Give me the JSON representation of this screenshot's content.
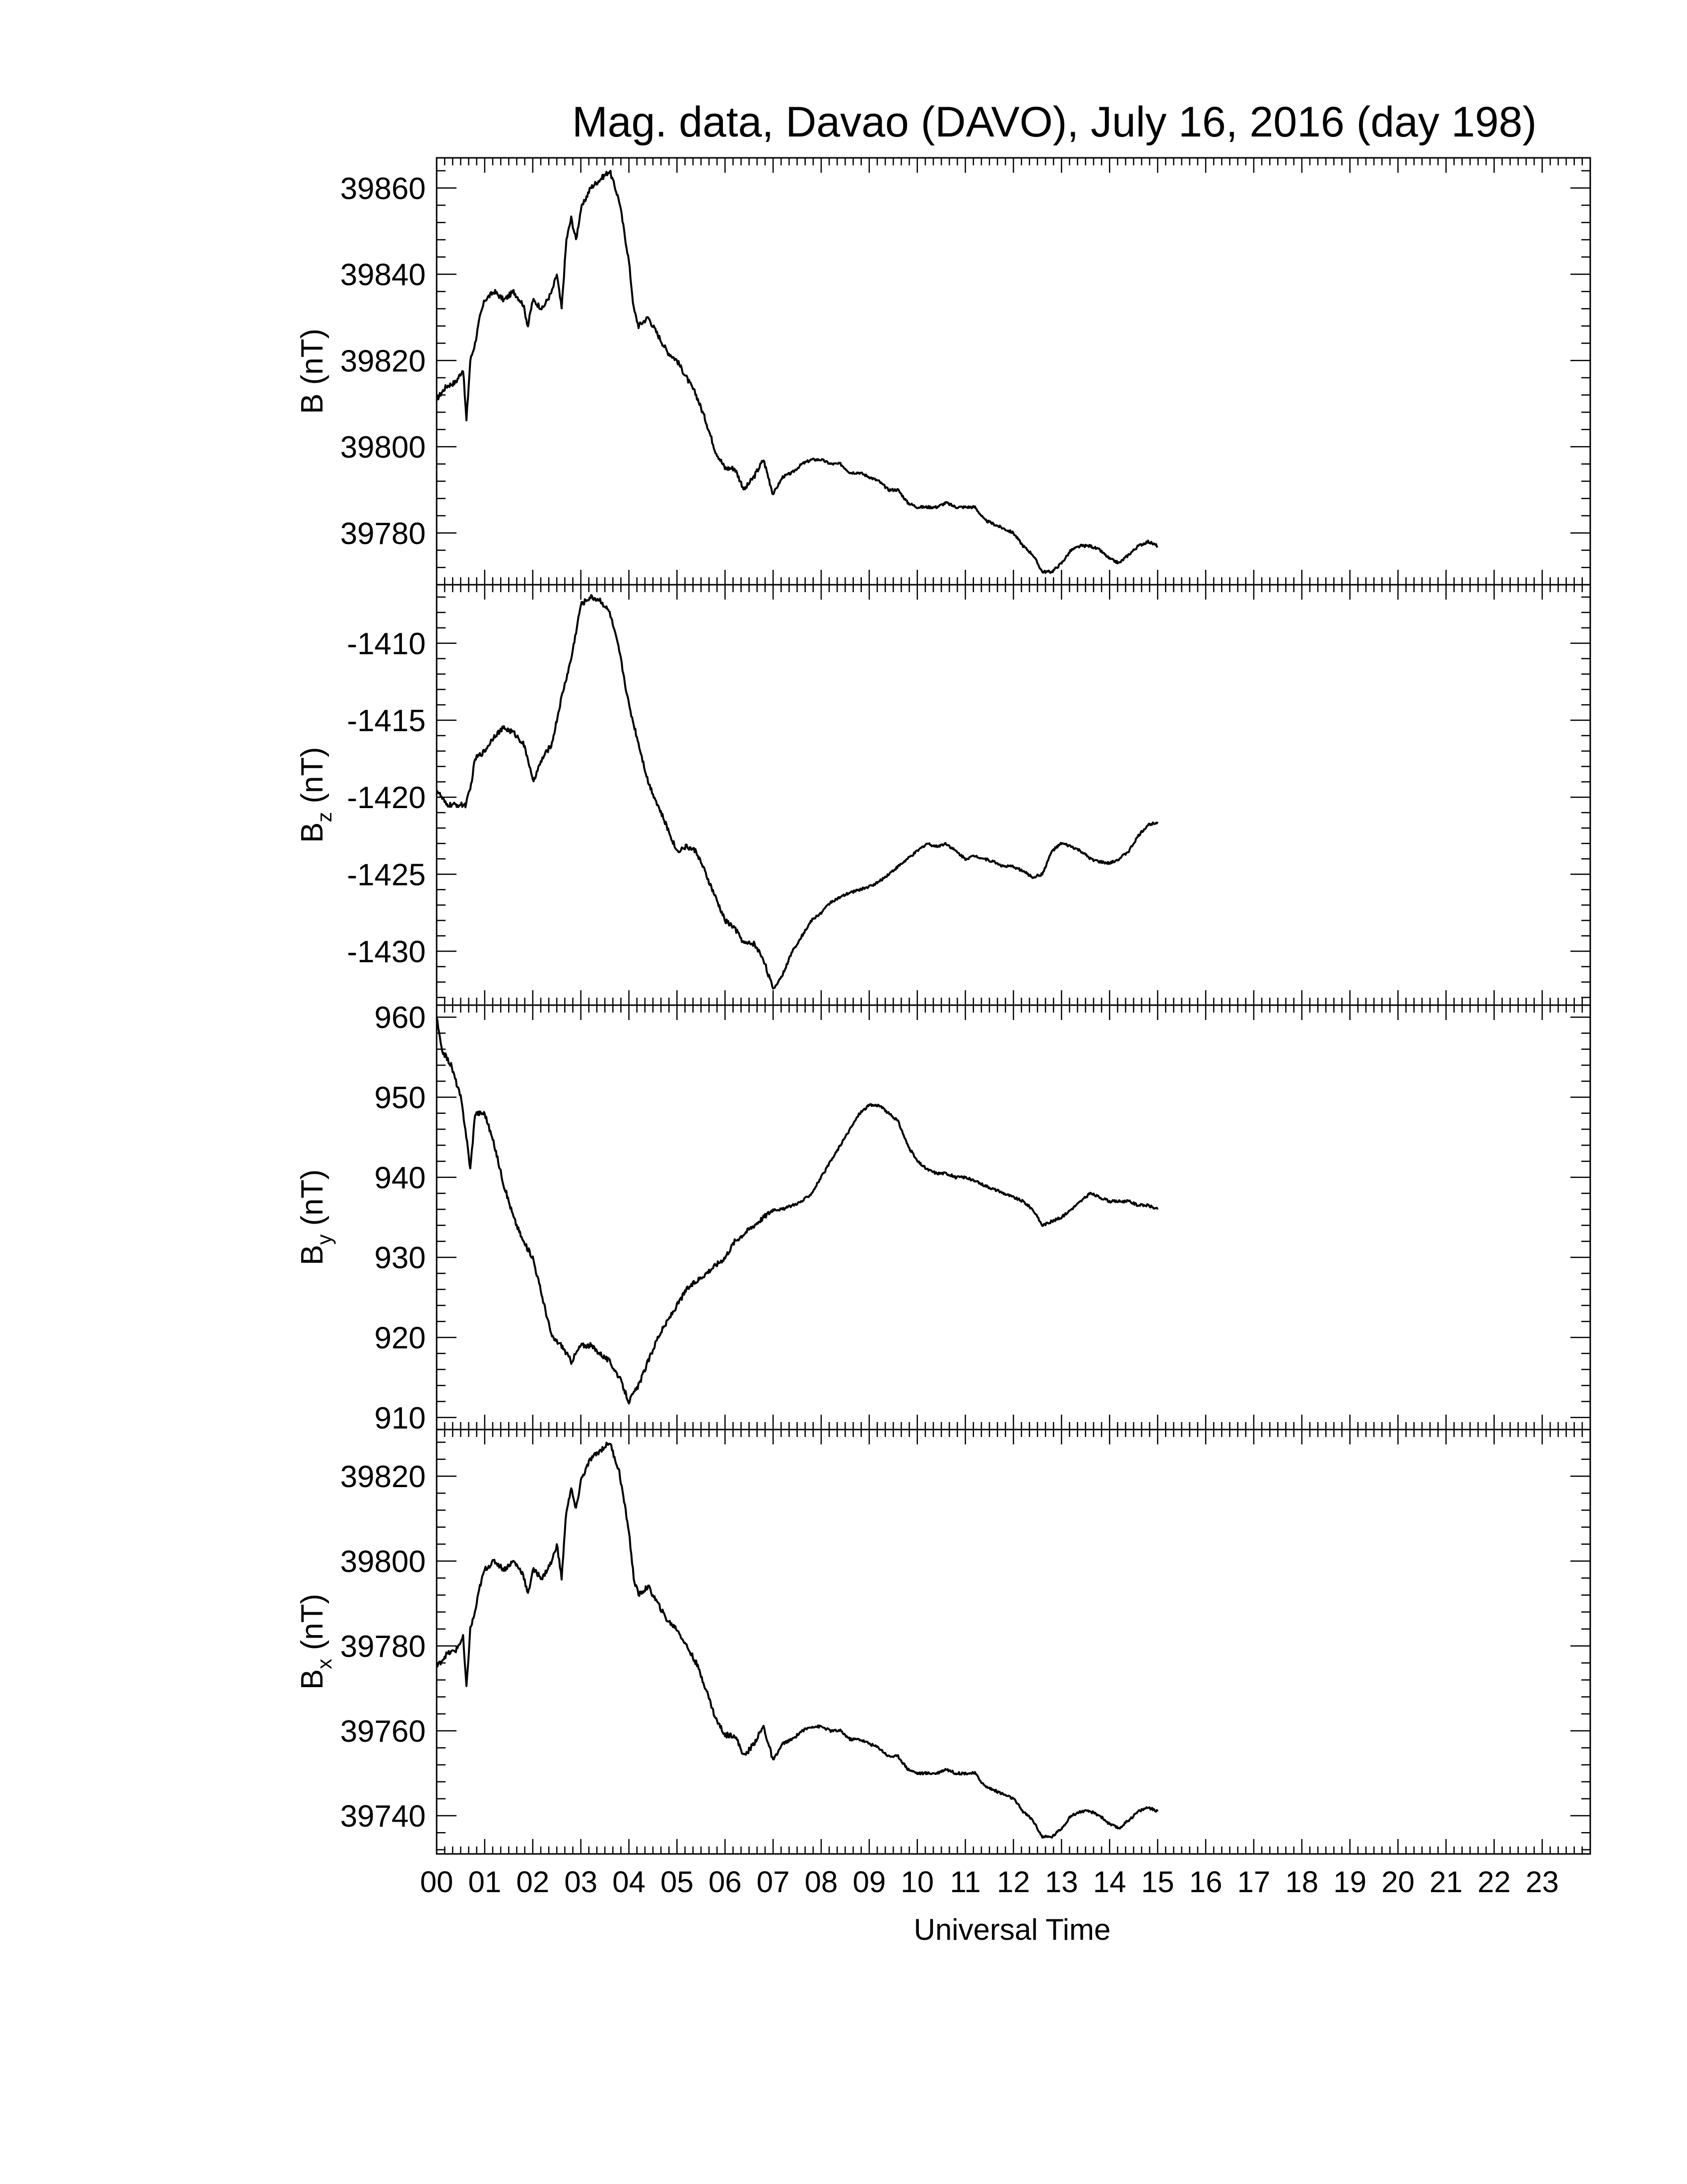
{
  "title": "Mag. data, Davao (DAVO), July 16, 2016 (day 198)",
  "xlabel": "Universal Time",
  "x_tick_labels": [
    "00",
    "01",
    "02",
    "03",
    "04",
    "05",
    "06",
    "07",
    "08",
    "09",
    "10",
    "11",
    "12",
    "13",
    "14",
    "15",
    "16",
    "17",
    "18",
    "19",
    "20",
    "21",
    "22",
    "23"
  ],
  "chart_data": [
    {
      "type": "line",
      "ylabel": {
        "main": "B",
        "sub": "",
        "unit": "(nT)"
      },
      "xlim": [
        0,
        24
      ],
      "ylim": [
        39768,
        39867
      ],
      "yticks": [
        39780,
        39800,
        39820,
        39840,
        39860
      ],
      "series": [
        {
          "x": [
            0,
            0.2,
            0.4,
            0.55,
            0.62,
            0.7,
            0.8,
            0.9,
            1.0,
            1.2,
            1.4,
            1.6,
            1.8,
            1.9,
            2.0,
            2.2,
            2.4,
            2.5,
            2.6,
            2.7,
            2.8,
            2.9,
            3.0,
            3.2,
            3.4,
            3.6,
            3.8,
            4.0,
            4.1,
            4.2,
            4.4,
            4.6,
            4.8,
            5.0,
            5.2,
            5.4,
            5.6,
            5.8,
            6.0,
            6.2,
            6.4,
            6.6,
            6.8,
            7.0,
            7.2,
            7.4,
            7.6,
            7.8,
            8.0,
            8.2,
            8.4,
            8.6,
            8.8,
            9.0,
            9.2,
            9.4,
            9.6,
            9.8,
            10.0,
            10.2,
            10.4,
            10.6,
            10.8,
            11.0,
            11.2,
            11.4,
            11.6,
            11.8,
            12.0,
            12.2,
            12.4,
            12.6,
            12.8,
            13.0,
            13.2,
            13.4,
            13.6,
            13.8,
            14.0,
            14.2,
            14.4,
            14.6,
            14.8,
            15.0
          ],
          "y": [
            39811,
            39814,
            39815,
            39818,
            39806,
            39820,
            39824,
            39830,
            39834,
            39836,
            39834,
            39836,
            39833,
            39828,
            39834,
            39832,
            39836,
            39840,
            39832,
            39848,
            39853,
            39848,
            39855,
            39860,
            39862,
            39864,
            39857,
            39843,
            39832,
            39828,
            39830,
            39826,
            39822,
            39820,
            39816,
            39812,
            39806,
            39799,
            39795,
            39795,
            39790,
            39793,
            39797,
            39789,
            39793,
            39794,
            39796,
            39797,
            39797,
            39796,
            39796,
            39794,
            39794,
            39793,
            39792,
            39790,
            39790,
            39787,
            39786,
            39786,
            39786,
            39787,
            39786,
            39786,
            39786,
            39783,
            39782,
            39781,
            39780,
            39777,
            39775,
            39771,
            39771,
            39773,
            39776,
            39777,
            39777,
            39776,
            39774,
            39773,
            39775,
            39777,
            39778,
            39777
          ]
        }
      ]
    },
    {
      "type": "line",
      "ylabel": {
        "main": "B",
        "sub": "z",
        "unit": "(nT)"
      },
      "xlim": [
        0,
        24
      ],
      "ylim": [
        -1433.5,
        -1406.2
      ],
      "yticks": [
        -1410,
        -1415,
        -1420,
        -1425,
        -1430
      ],
      "series": [
        {
          "x": [
            0,
            0.2,
            0.4,
            0.6,
            0.7,
            0.8,
            1.0,
            1.2,
            1.4,
            1.6,
            1.8,
            1.9,
            2.0,
            2.2,
            2.4,
            2.6,
            2.8,
            3.0,
            3.2,
            3.4,
            3.6,
            3.8,
            4.0,
            4.2,
            4.4,
            4.6,
            4.8,
            5.0,
            5.2,
            5.4,
            5.6,
            5.8,
            6.0,
            6.2,
            6.4,
            6.6,
            6.8,
            7.0,
            7.2,
            7.4,
            7.6,
            7.8,
            8.0,
            8.2,
            8.4,
            8.6,
            8.8,
            9.0,
            9.2,
            9.4,
            9.6,
            9.8,
            10.0,
            10.2,
            10.4,
            10.6,
            10.8,
            11.0,
            11.2,
            11.4,
            11.6,
            11.8,
            12.0,
            12.2,
            12.4,
            12.6,
            12.8,
            13.0,
            13.2,
            13.4,
            13.6,
            13.8,
            14.0,
            14.2,
            14.4,
            14.6,
            14.8,
            15.0
          ],
          "y": [
            -1419.5,
            -1420.5,
            -1420.5,
            -1420.5,
            -1419.5,
            -1417.5,
            -1417.0,
            -1416.0,
            -1415.5,
            -1415.8,
            -1416.5,
            -1417.5,
            -1419.0,
            -1417.5,
            -1416.5,
            -1413.5,
            -1411.0,
            -1407.5,
            -1407.0,
            -1407.2,
            -1408.0,
            -1410.5,
            -1414.0,
            -1416.5,
            -1419.0,
            -1420.5,
            -1422.0,
            -1423.5,
            -1423.2,
            -1423.5,
            -1425.0,
            -1426.5,
            -1428.0,
            -1428.5,
            -1429.5,
            -1429.5,
            -1430.5,
            -1432.5,
            -1431.5,
            -1430.0,
            -1429.0,
            -1428.0,
            -1427.5,
            -1426.8,
            -1426.5,
            -1426.2,
            -1426.0,
            -1425.8,
            -1425.5,
            -1425.0,
            -1424.5,
            -1424.0,
            -1423.5,
            -1423.0,
            -1423.2,
            -1423.0,
            -1423.5,
            -1424.0,
            -1423.8,
            -1424.0,
            -1424.2,
            -1424.5,
            -1424.5,
            -1424.8,
            -1425.2,
            -1425.0,
            -1423.5,
            -1423.0,
            -1423.2,
            -1423.5,
            -1424.0,
            -1424.2,
            -1424.3,
            -1424.0,
            -1423.5,
            -1422.5,
            -1421.8,
            -1421.6
          ]
        }
      ]
    },
    {
      "type": "line",
      "ylabel": {
        "main": "B",
        "sub": "y",
        "unit": "(nT)"
      },
      "xlim": [
        0,
        24
      ],
      "ylim": [
        908.5,
        961.5
      ],
      "yticks": [
        910,
        920,
        930,
        940,
        950,
        960
      ],
      "series": [
        {
          "x": [
            0,
            0.1,
            0.2,
            0.3,
            0.4,
            0.5,
            0.6,
            0.7,
            0.8,
            1.0,
            1.2,
            1.4,
            1.6,
            1.8,
            2.0,
            2.2,
            2.4,
            2.6,
            2.8,
            3.0,
            3.2,
            3.4,
            3.6,
            3.8,
            4.0,
            4.2,
            4.4,
            4.6,
            4.8,
            5.0,
            5.2,
            5.4,
            5.6,
            5.8,
            6.0,
            6.2,
            6.4,
            6.6,
            6.8,
            7.0,
            7.2,
            7.4,
            7.6,
            7.8,
            8.0,
            8.2,
            8.4,
            8.6,
            8.8,
            9.0,
            9.2,
            9.4,
            9.6,
            9.8,
            10.0,
            10.2,
            10.4,
            10.6,
            10.8,
            11.0,
            11.2,
            11.4,
            11.6,
            11.8,
            12.0,
            12.2,
            12.4,
            12.6,
            12.8,
            13.0,
            13.2,
            13.4,
            13.6,
            13.8,
            14.0,
            14.2,
            14.4,
            14.6,
            14.8,
            15.0
          ],
          "y": [
            960,
            956,
            955,
            954,
            952,
            950,
            946,
            941,
            948,
            948,
            944,
            939,
            935,
            932,
            930,
            925,
            920,
            919,
            917,
            919,
            919,
            918,
            917,
            915,
            912,
            914,
            917,
            920,
            922,
            924,
            926,
            927,
            928,
            929,
            930,
            932,
            933,
            934,
            935,
            936,
            936,
            936.5,
            937,
            938,
            940,
            942,
            944,
            946,
            948,
            949,
            949,
            948,
            947,
            944,
            942,
            941,
            940.5,
            940.5,
            940,
            940,
            939.5,
            939,
            938.5,
            938,
            937.5,
            937,
            936,
            934,
            934.5,
            935,
            936,
            937,
            938,
            937.5,
            937,
            937,
            937,
            936.5,
            936.5,
            936
          ]
        }
      ]
    },
    {
      "type": "line",
      "ylabel": {
        "main": "B",
        "sub": "x",
        "unit": "(nT)"
      },
      "xlim": [
        0,
        24
      ],
      "ylim": [
        39731,
        39831
      ],
      "yticks": [
        39740,
        39760,
        39780,
        39800,
        39820
      ],
      "series": [
        {
          "x": [
            0,
            0.2,
            0.4,
            0.55,
            0.62,
            0.7,
            0.8,
            0.9,
            1.0,
            1.2,
            1.4,
            1.6,
            1.8,
            1.9,
            2.0,
            2.2,
            2.4,
            2.5,
            2.6,
            2.7,
            2.8,
            2.9,
            3.0,
            3.2,
            3.4,
            3.6,
            3.8,
            4.0,
            4.1,
            4.2,
            4.4,
            4.6,
            4.8,
            5.0,
            5.2,
            5.4,
            5.6,
            5.8,
            6.0,
            6.2,
            6.4,
            6.6,
            6.8,
            7.0,
            7.2,
            7.4,
            7.6,
            7.8,
            8.0,
            8.2,
            8.4,
            8.6,
            8.8,
            9.0,
            9.2,
            9.4,
            9.6,
            9.8,
            10.0,
            10.2,
            10.4,
            10.6,
            10.8,
            11.0,
            11.2,
            11.4,
            11.6,
            11.8,
            12.0,
            12.2,
            12.4,
            12.6,
            12.8,
            13.0,
            13.2,
            13.4,
            13.6,
            13.8,
            14.0,
            14.2,
            14.4,
            14.6,
            14.8,
            15.0
          ],
          "y": [
            39775,
            39778,
            39779,
            39782,
            39770,
            39784,
            39788,
            39794,
            39798,
            39800,
            39798,
            39800,
            39797,
            39792,
            39798,
            39796,
            39800,
            39804,
            39796,
            39812,
            39817,
            39812,
            39819,
            39824,
            39826,
            39828,
            39821,
            39807,
            39796,
            39792,
            39794,
            39790,
            39786,
            39784,
            39780,
            39776,
            39770,
            39763,
            39759,
            39759,
            39754,
            39757,
            39761,
            39753,
            39757,
            39758,
            39760,
            39761,
            39761,
            39760,
            39760,
            39758,
            39758,
            39757,
            39756,
            39754,
            39754,
            39751,
            39750,
            39750,
            39750,
            39751,
            39750,
            39750,
            39750,
            39747,
            39746,
            39745,
            39744,
            39741,
            39739,
            39735,
            39735,
            39737,
            39740,
            39741,
            39741,
            39740,
            39738,
            39737,
            39739,
            39741,
            39742,
            39741
          ]
        }
      ]
    }
  ]
}
